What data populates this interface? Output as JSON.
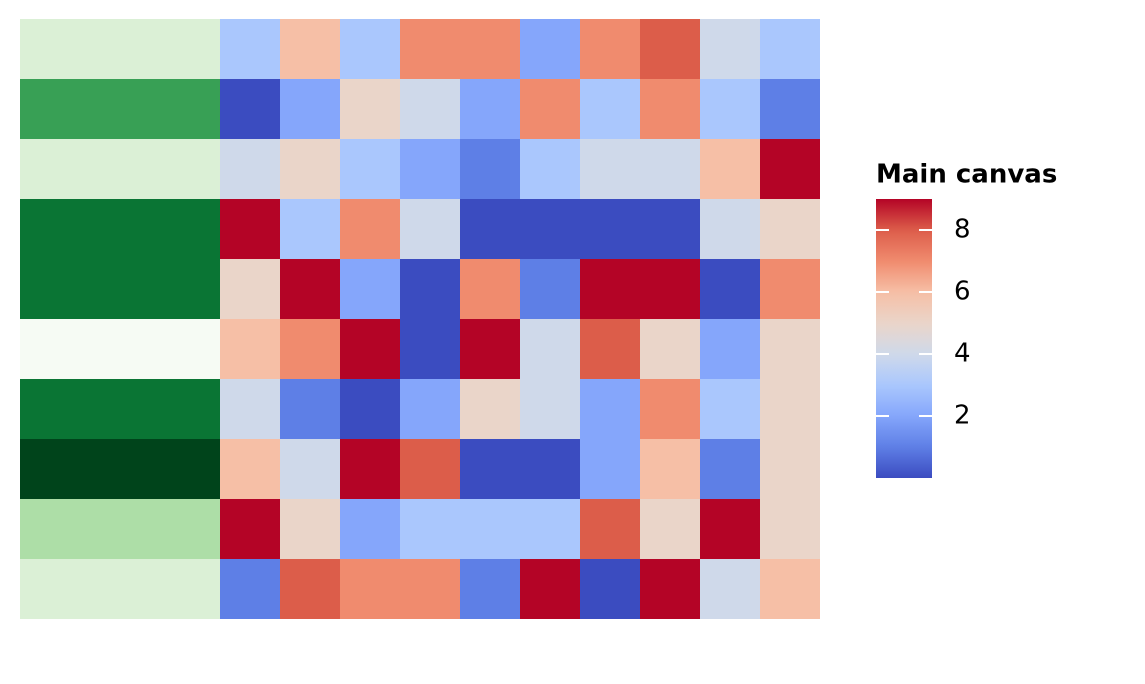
{
  "chart_data": {
    "type": "heatmap",
    "values": [
      [
        3,
        6,
        3,
        7,
        7,
        2,
        7,
        8,
        4,
        3
      ],
      [
        0,
        2,
        5,
        4,
        2,
        7,
        3,
        7,
        3,
        1
      ],
      [
        4,
        5,
        3,
        2,
        1,
        3,
        4,
        4,
        6,
        9
      ],
      [
        9,
        3,
        7,
        4,
        0,
        0,
        0,
        0,
        4,
        5
      ],
      [
        5,
        9,
        2,
        0,
        7,
        1,
        9,
        9,
        0,
        7
      ],
      [
        6,
        7,
        9,
        0,
        9,
        4,
        8,
        5,
        2,
        5
      ],
      [
        4,
        1,
        0,
        2,
        5,
        4,
        2,
        7,
        3,
        5
      ],
      [
        6,
        4,
        9,
        8,
        0,
        0,
        2,
        6,
        1,
        5
      ],
      [
        9,
        5,
        2,
        3,
        3,
        3,
        8,
        5,
        9,
        5
      ],
      [
        1,
        8,
        7,
        7,
        1,
        9,
        0,
        9,
        4,
        6
      ]
    ],
    "colormap": "coolwarm",
    "zlim": [
      0,
      9
    ],
    "legend_title": "Main canvas",
    "zticks": [
      2,
      4,
      6,
      8
    ],
    "annotation_colors": [
      "#dbf0d6",
      "#38a055",
      "#dbf0d6",
      "#0a7534",
      "#0a7534",
      "#f6fbf4",
      "#0a7534",
      "#00441b",
      "#addea7",
      "#dbf0d6"
    ]
  }
}
